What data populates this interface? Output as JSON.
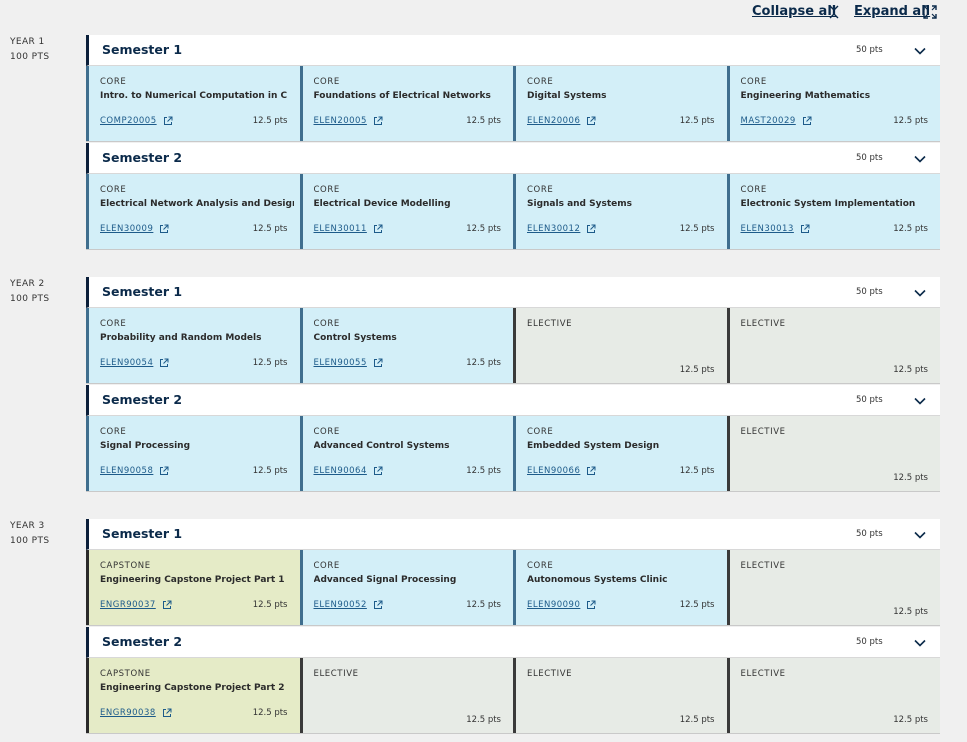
{
  "toolbar": {
    "collapse_label": "Collapse all",
    "expand_label": "Expand all",
    "collapse_icon": "collapse-arrows-icon",
    "expand_icon": "expand-arrows-icon"
  },
  "colors": {
    "core": "#d3eff8",
    "elective": "#e7ebe6",
    "capstone": "#e5ebc7",
    "header_accent": "#0b1f3a"
  },
  "years": [
    {
      "label": "YEAR 1",
      "points": "100 PTS",
      "semesters": [
        {
          "title": "Semester 1",
          "points": "50 pts",
          "subjects": [
            {
              "type": "CORE",
              "name": "Intro. to Numerical Computation in C",
              "code": "COMP20005",
              "points": "12.5 pts"
            },
            {
              "type": "CORE",
              "name": "Foundations of Electrical Networks",
              "code": "ELEN20005",
              "points": "12.5 pts"
            },
            {
              "type": "CORE",
              "name": "Digital Systems",
              "code": "ELEN20006",
              "points": "12.5 pts"
            },
            {
              "type": "CORE",
              "name": "Engineering Mathematics",
              "code": "MAST20029",
              "points": "12.5 pts"
            }
          ]
        },
        {
          "title": "Semester 2",
          "points": "50 pts",
          "subjects": [
            {
              "type": "CORE",
              "name": "Electrical Network Analysis and Design",
              "code": "ELEN30009",
              "points": "12.5 pts"
            },
            {
              "type": "CORE",
              "name": "Electrical Device Modelling",
              "code": "ELEN30011",
              "points": "12.5 pts"
            },
            {
              "type": "CORE",
              "name": "Signals and Systems",
              "code": "ELEN30012",
              "points": "12.5 pts"
            },
            {
              "type": "CORE",
              "name": "Electronic System Implementation",
              "code": "ELEN30013",
              "points": "12.5 pts"
            }
          ]
        }
      ]
    },
    {
      "label": "YEAR 2",
      "points": "100 PTS",
      "semesters": [
        {
          "title": "Semester 1",
          "points": "50 pts",
          "subjects": [
            {
              "type": "CORE",
              "name": "Probability and Random Models",
              "code": "ELEN90054",
              "points": "12.5 pts"
            },
            {
              "type": "CORE",
              "name": "Control Systems",
              "code": "ELEN90055",
              "points": "12.5 pts"
            },
            {
              "type": "ELECTIVE",
              "name": "",
              "code": "",
              "points": "12.5 pts"
            },
            {
              "type": "ELECTIVE",
              "name": "",
              "code": "",
              "points": "12.5 pts"
            }
          ]
        },
        {
          "title": "Semester 2",
          "points": "50 pts",
          "subjects": [
            {
              "type": "CORE",
              "name": "Signal Processing",
              "code": "ELEN90058",
              "points": "12.5 pts"
            },
            {
              "type": "CORE",
              "name": "Advanced Control Systems",
              "code": "ELEN90064",
              "points": "12.5 pts"
            },
            {
              "type": "CORE",
              "name": "Embedded System Design",
              "code": "ELEN90066",
              "points": "12.5 pts"
            },
            {
              "type": "ELECTIVE",
              "name": "",
              "code": "",
              "points": "12.5 pts"
            }
          ]
        }
      ]
    },
    {
      "label": "YEAR 3",
      "points": "100 PTS",
      "semesters": [
        {
          "title": "Semester 1",
          "points": "50 pts",
          "subjects": [
            {
              "type": "CAPSTONE",
              "name": "Engineering Capstone Project Part 1",
              "code": "ENGR90037",
              "points": "12.5 pts"
            },
            {
              "type": "CORE",
              "name": "Advanced Signal Processing",
              "code": "ELEN90052",
              "points": "12.5 pts"
            },
            {
              "type": "CORE",
              "name": "Autonomous Systems Clinic",
              "code": "ELEN90090",
              "points": "12.5 pts"
            },
            {
              "type": "ELECTIVE",
              "name": "",
              "code": "",
              "points": "12.5 pts"
            }
          ]
        },
        {
          "title": "Semester 2",
          "points": "50 pts",
          "subjects": [
            {
              "type": "CAPSTONE",
              "name": "Engineering Capstone Project Part 2",
              "code": "ENGR90038",
              "points": "12.5 pts"
            },
            {
              "type": "ELECTIVE",
              "name": "",
              "code": "",
              "points": "12.5 pts"
            },
            {
              "type": "ELECTIVE",
              "name": "",
              "code": "",
              "points": "12.5 pts"
            },
            {
              "type": "ELECTIVE",
              "name": "",
              "code": "",
              "points": "12.5 pts"
            }
          ]
        }
      ]
    }
  ]
}
